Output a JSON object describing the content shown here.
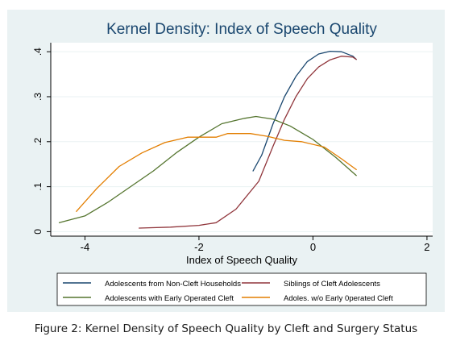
{
  "caption": "Figure 2: Kernel Density of Speech Quality by Cleft and Surgery Status",
  "chart_data": {
    "type": "line",
    "title": "Kernel Density: Index of Speech Quality",
    "xlabel": "Index of Speech Quality",
    "ylabel": "",
    "xlim": [
      -4.6,
      2.1
    ],
    "ylim": [
      -0.01,
      0.42
    ],
    "xticks": [
      -4,
      -2,
      0,
      2
    ],
    "xtick_labels": [
      "-4",
      "-2",
      "0",
      "2"
    ],
    "yticks": [
      0,
      0.1,
      0.2,
      0.3,
      0.4
    ],
    "ytick_labels": [
      "0",
      ".1",
      ".2",
      ".3",
      ".4"
    ],
    "grid": true,
    "legend_position": "bottom",
    "series": [
      {
        "name": "Adolescents from Non-Cleft Households",
        "color": "#1a476f",
        "x": [
          -1.05,
          -0.9,
          -0.7,
          -0.5,
          -0.3,
          -0.1,
          0.1,
          0.3,
          0.5,
          0.7,
          0.76
        ],
        "y": [
          0.135,
          0.17,
          0.24,
          0.3,
          0.345,
          0.378,
          0.395,
          0.401,
          0.4,
          0.39,
          0.383
        ]
      },
      {
        "name": "Siblings of Cleft Adolescents",
        "color": "#90353b",
        "x": [
          -3.05,
          -2.5,
          -2.0,
          -1.7,
          -1.35,
          -0.95,
          -0.7,
          -0.5,
          -0.3,
          -0.1,
          0.1,
          0.3,
          0.5,
          0.7,
          0.76
        ],
        "y": [
          0.008,
          0.01,
          0.014,
          0.02,
          0.05,
          0.112,
          0.19,
          0.25,
          0.3,
          0.34,
          0.366,
          0.382,
          0.39,
          0.388,
          0.383
        ]
      },
      {
        "name": "Adolescents with Early Operated Cleft",
        "color": "#55752f",
        "x": [
          -4.45,
          -4.0,
          -3.6,
          -3.2,
          -2.8,
          -2.4,
          -2.0,
          -1.6,
          -1.2,
          -1.0,
          -0.7,
          -0.4,
          0.0,
          0.4,
          0.76
        ],
        "y": [
          0.02,
          0.035,
          0.065,
          0.1,
          0.135,
          0.175,
          0.21,
          0.24,
          0.252,
          0.256,
          0.25,
          0.235,
          0.205,
          0.165,
          0.125
        ]
      },
      {
        "name": "Adoles. w/o Early 0perated Cleft",
        "color": "#e37e00",
        "x": [
          -4.15,
          -3.8,
          -3.4,
          -3.0,
          -2.6,
          -2.2,
          -1.9,
          -1.7,
          -1.5,
          -1.1,
          -0.8,
          -0.5,
          -0.2,
          0.2,
          0.5,
          0.76
        ],
        "y": [
          0.045,
          0.095,
          0.145,
          0.175,
          0.198,
          0.21,
          0.21,
          0.21,
          0.218,
          0.218,
          0.212,
          0.203,
          0.2,
          0.188,
          0.162,
          0.138
        ]
      }
    ]
  }
}
